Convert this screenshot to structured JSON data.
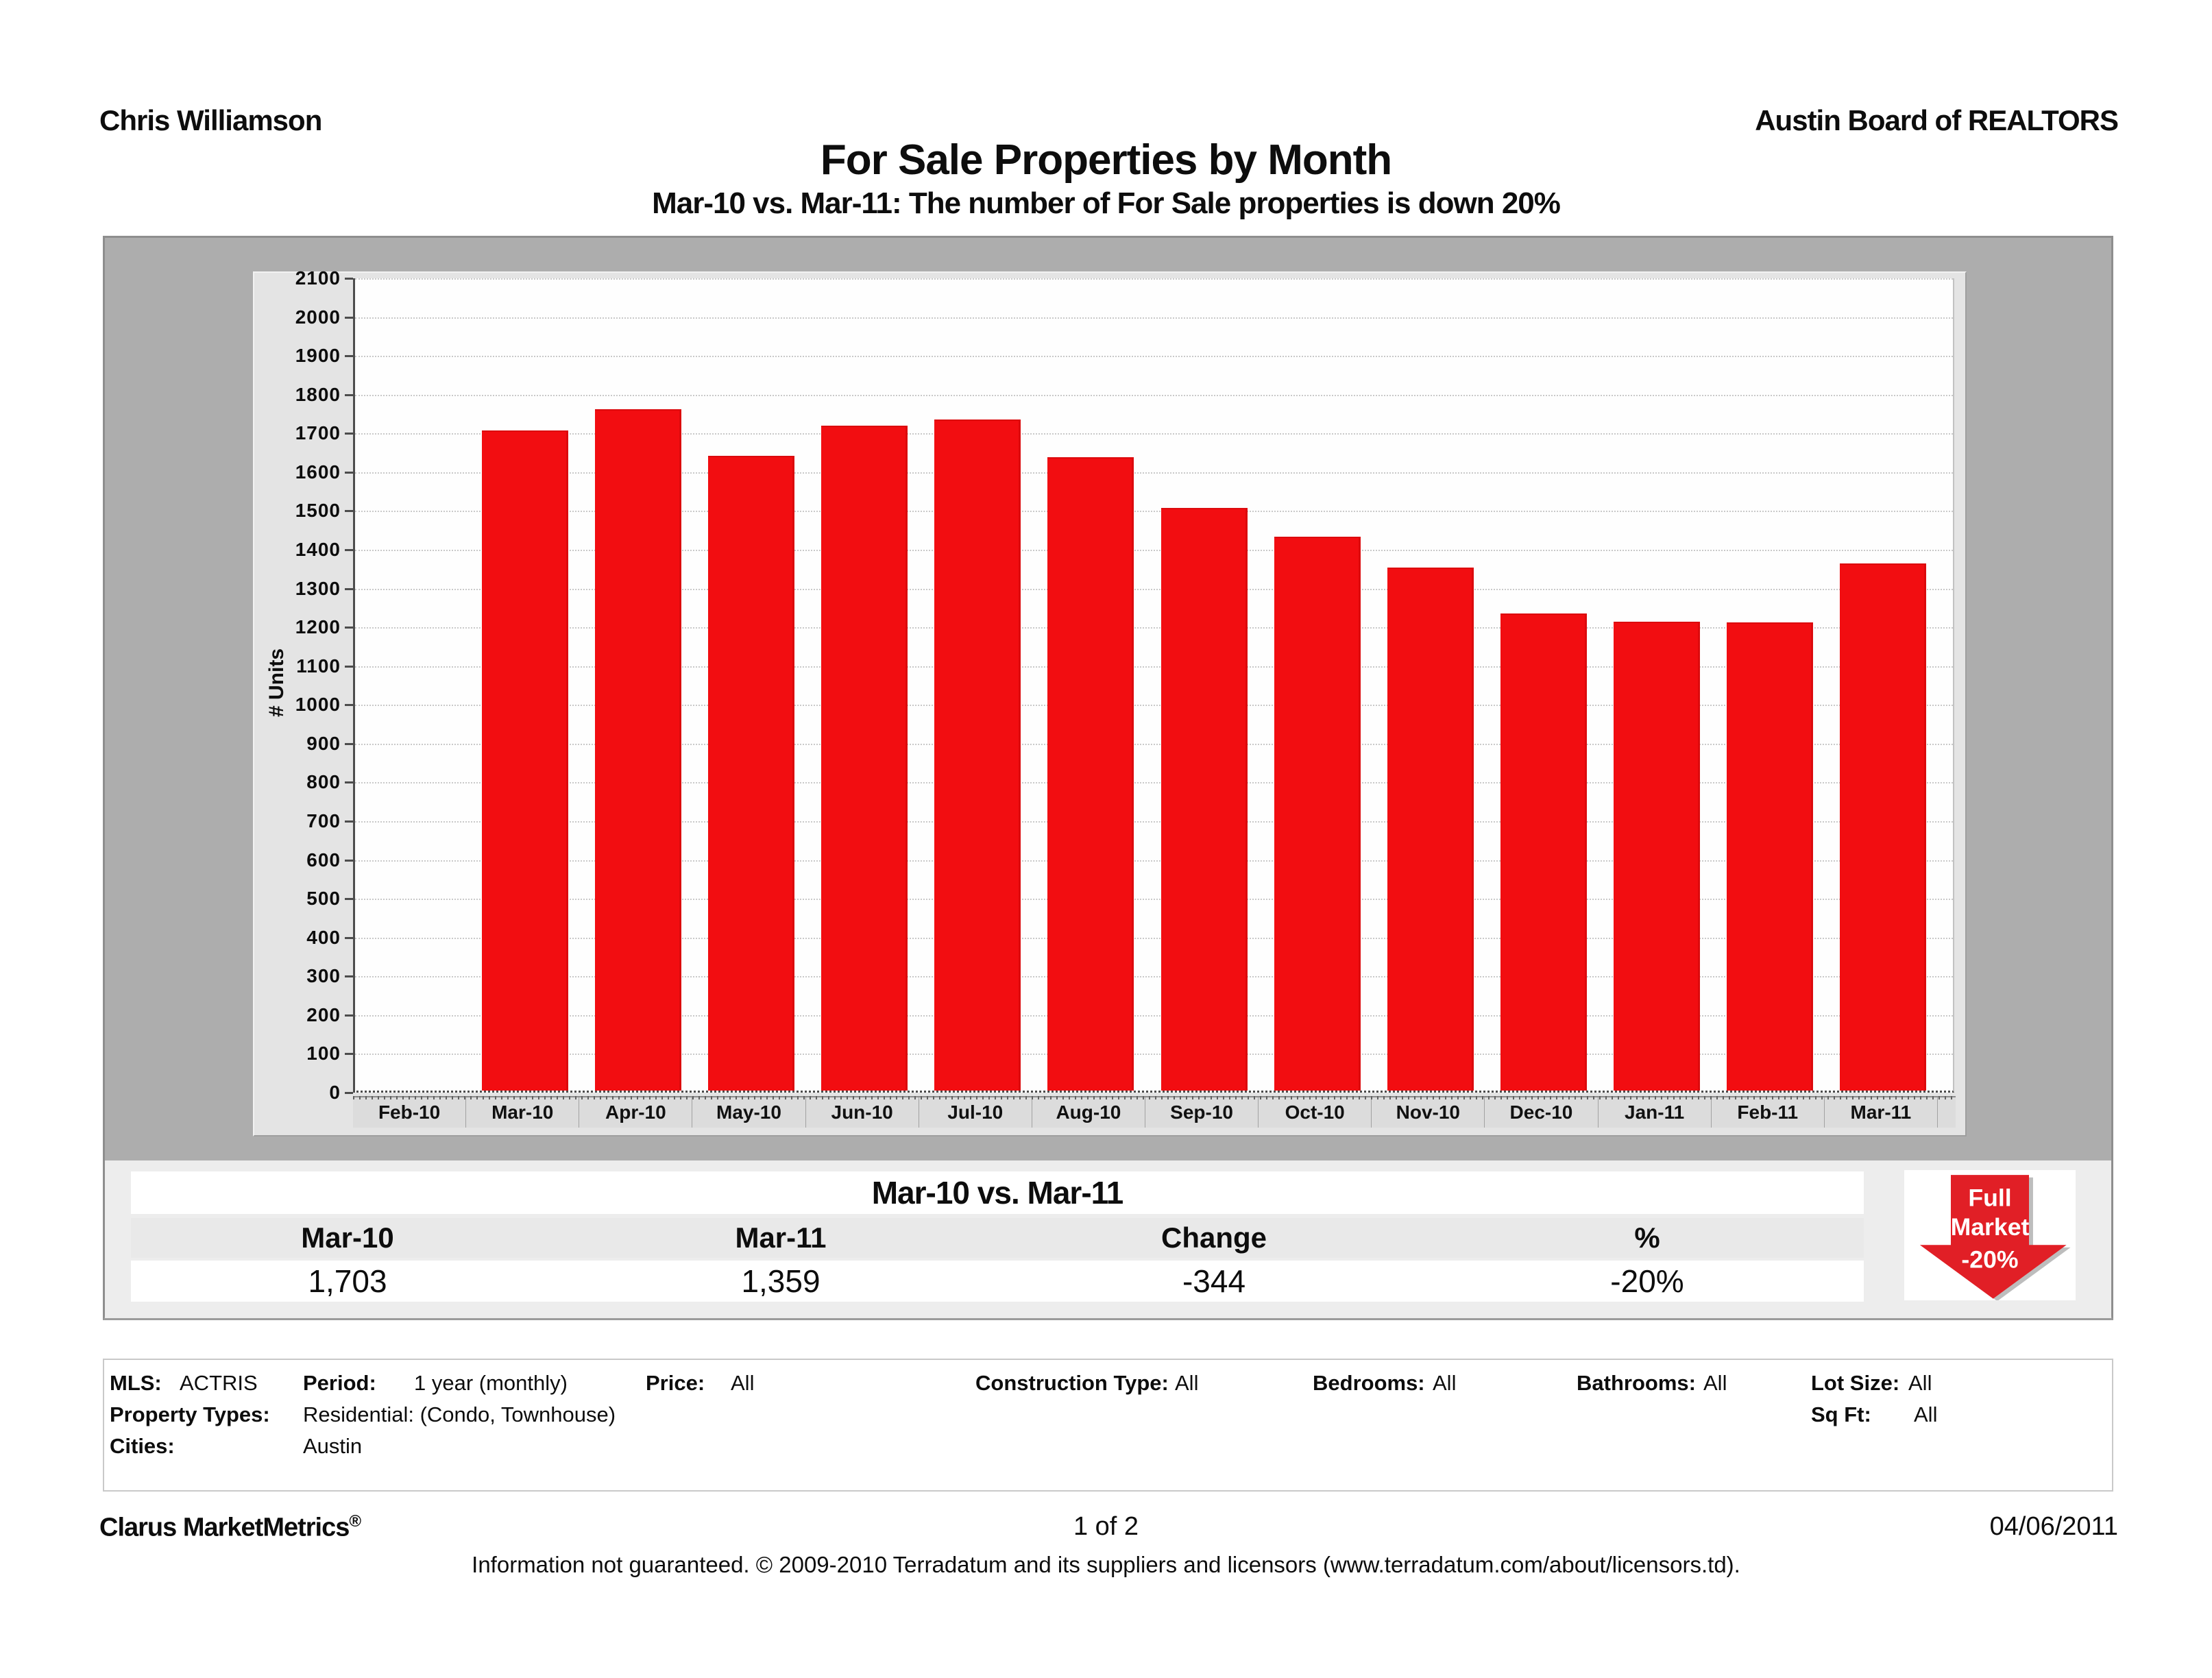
{
  "header": {
    "agent": "Chris Williamson",
    "organization": "Austin Board of REALTORS",
    "title": "For Sale Properties by Month",
    "subtitle": "Mar-10 vs. Mar-11: The number of For Sale properties is down 20%"
  },
  "chart_data": {
    "type": "bar",
    "title": "For Sale Properties by Month",
    "categories": [
      "Feb-10",
      "Mar-10",
      "Apr-10",
      "May-10",
      "Jun-10",
      "Jul-10",
      "Aug-10",
      "Sep-10",
      "Oct-10",
      "Nov-10",
      "Dec-10",
      "Jan-11",
      "Feb-11",
      "Mar-11"
    ],
    "values": [
      null,
      1703,
      1757,
      1637,
      1715,
      1730,
      1633,
      1503,
      1429,
      1349,
      1230,
      1210,
      1208,
      1359
    ],
    "xlabel": "",
    "ylabel": "# Units",
    "ylim": [
      0,
      2100
    ],
    "ytick_step": 100,
    "grid": true,
    "legend": "none",
    "bar_color": "#f20d11"
  },
  "comparison": {
    "title": "Mar-10 vs. Mar-11",
    "columns": [
      "Mar-10",
      "Mar-11",
      "Change",
      "%"
    ],
    "values": [
      "1,703",
      "1,359",
      "-344",
      "-20%"
    ]
  },
  "badge": {
    "line1": "Full",
    "line2": "Market",
    "line3": "-20%"
  },
  "colors": {
    "bar": "#f20d11",
    "arrow": "#e11f26",
    "arrow_shadow": "#bdbdbd"
  },
  "filters": {
    "mls_label": "MLS:",
    "mls_value": "ACTRIS",
    "period_label": "Period:",
    "period_value": "1 year (monthly)",
    "price_label": "Price:",
    "price_value": "All",
    "construction_label": "Construction Type:",
    "construction_value": "All",
    "bedrooms_label": "Bedrooms:",
    "bedrooms_value": "All",
    "bathrooms_label": "Bathrooms:",
    "bathrooms_value": "All",
    "lotsize_label": "Lot Size:",
    "lotsize_value": "All",
    "proptypes_label": "Property Types:",
    "proptypes_value": "Residential: (Condo, Townhouse)",
    "sqft_label": "Sq Ft:",
    "sqft_value": "All",
    "cities_label": "Cities:",
    "cities_value": "Austin"
  },
  "footer": {
    "brand": "Clarus MarketMetrics",
    "brand_mark": "®",
    "page": "1 of 2",
    "date": "04/06/2011",
    "disclaimer": "Information not guaranteed.  © 2009-2010 Terradatum and its suppliers and licensors (www.terradatum.com/about/licensors.td)."
  }
}
